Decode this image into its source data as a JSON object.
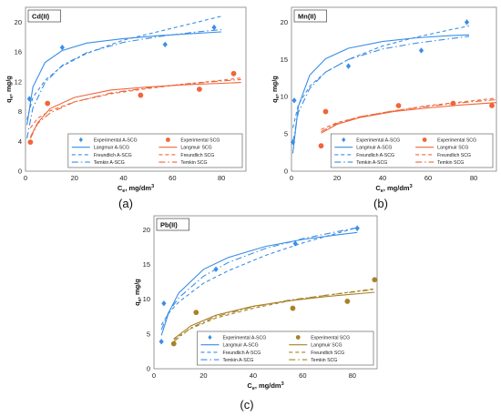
{
  "chart_data": [
    {
      "type": "scatter",
      "panel_label": "(a)",
      "metal_label": "Cd(II)",
      "xlabel": "C",
      "xlabel_sub": "e",
      "xlabel_unit": ", mg/dm",
      "xlabel_sup": "3",
      "ylabel": "q",
      "ylabel_sub": "e",
      "ylabel_unit": ", mg/g",
      "xlim": [
        0,
        90
      ],
      "ylim": [
        0,
        22
      ],
      "xticks": [
        0,
        20,
        40,
        60,
        80
      ],
      "yticks": [
        0,
        4,
        8,
        12,
        16,
        20
      ],
      "legend_position": "bottom-right",
      "series": [
        {
          "name": "Experimental A-SCG",
          "kind": "points",
          "marker": "diamond",
          "color": "#3a8ee6",
          "x": [
            1.6,
            15,
            57,
            77
          ],
          "y": [
            9.7,
            16.6,
            17,
            19.3
          ]
        },
        {
          "name": "Experimental SCG",
          "kind": "points",
          "marker": "circle",
          "color": "#f0653a",
          "x": [
            2,
            9,
            47,
            71,
            85
          ],
          "y": [
            3.9,
            9.1,
            10.2,
            11,
            13.1
          ]
        },
        {
          "name": "Langmuir A-SCG",
          "kind": "line",
          "dash": "solid",
          "color": "#3a8ee6",
          "x": [
            0.6,
            3,
            8,
            15,
            25,
            40,
            55,
            70,
            80
          ],
          "y": [
            6.2,
            11.3,
            14.6,
            16.2,
            17.2,
            17.8,
            18.2,
            18.5,
            18.7
          ]
        },
        {
          "name": "Freundlich A-SCG",
          "kind": "line",
          "dash": "dash",
          "color": "#3a8ee6",
          "x": [
            0.6,
            3,
            8,
            15,
            25,
            40,
            55,
            70,
            80
          ],
          "y": [
            6.9,
            9.9,
            12.2,
            14.1,
            15.8,
            17.6,
            18.8,
            20,
            20.8
          ]
        },
        {
          "name": "Temkin A-SCG",
          "kind": "line",
          "dash": "dashdot",
          "color": "#3a8ee6",
          "x": [
            0.6,
            3,
            8,
            15,
            25,
            40,
            55,
            70,
            80
          ],
          "y": [
            4.4,
            8.5,
            11.9,
            14.2,
            15.9,
            17.3,
            18.1,
            18.7,
            19
          ]
        },
        {
          "name": "Langmuir SCG",
          "kind": "line",
          "dash": "solid",
          "color": "#f0653a",
          "x": [
            2,
            5,
            10,
            20,
            35,
            50,
            65,
            80,
            88
          ],
          "y": [
            4.6,
            6.5,
            8.4,
            9.9,
            10.9,
            11.3,
            11.6,
            11.8,
            11.9
          ]
        },
        {
          "name": "Freundlich SCG",
          "kind": "line",
          "dash": "dash",
          "color": "#f0653a",
          "x": [
            2,
            5,
            10,
            20,
            35,
            50,
            65,
            80,
            88
          ],
          "y": [
            5.8,
            7.1,
            8.1,
            9.3,
            10.4,
            11.1,
            11.7,
            12.2,
            12.5
          ]
        },
        {
          "name": "Temkin SCG",
          "kind": "line",
          "dash": "dashdot",
          "color": "#f0653a",
          "x": [
            2,
            5,
            10,
            20,
            35,
            50,
            65,
            80,
            88
          ],
          "y": [
            4.4,
            6.4,
            7.8,
            9.3,
            10.5,
            11.2,
            11.7,
            12.1,
            12.3
          ]
        }
      ]
    },
    {
      "type": "scatter",
      "panel_label": "(b)",
      "metal_label": "Mn(II)",
      "xlabel": "C",
      "xlabel_sub": "e",
      "xlabel_unit": ", mg/dm",
      "xlabel_sup": "3",
      "ylabel": "q",
      "ylabel_sub": "e",
      "ylabel_unit": ", mg/g",
      "xlim": [
        0,
        90
      ],
      "ylim": [
        0,
        22
      ],
      "xticks": [
        0,
        20,
        40,
        60,
        80
      ],
      "yticks": [
        0,
        5,
        10,
        15,
        20
      ],
      "legend_position": "bottom-right",
      "series": [
        {
          "name": "Experimental A-SCG",
          "kind": "points",
          "marker": "diamond",
          "color": "#3a8ee6",
          "x": [
            0.6,
            1.2,
            25,
            57,
            77
          ],
          "y": [
            3.9,
            9.5,
            14.1,
            16.2,
            20
          ]
        },
        {
          "name": "Experimental SCG",
          "kind": "points",
          "marker": "circle",
          "color": "#f0653a",
          "x": [
            13,
            15,
            47,
            71,
            88
          ],
          "y": [
            3.4,
            8,
            8.8,
            9.1,
            8.8
          ]
        },
        {
          "name": "Langmuir A-SCG",
          "kind": "line",
          "dash": "solid",
          "color": "#3a8ee6",
          "x": [
            0.6,
            3,
            8,
            15,
            25,
            40,
            55,
            70,
            78
          ],
          "y": [
            2.4,
            8.7,
            12.9,
            15.1,
            16.5,
            17.4,
            17.9,
            18.2,
            18.3
          ]
        },
        {
          "name": "Freundlich A-SCG",
          "kind": "line",
          "dash": "dash",
          "color": "#3a8ee6",
          "x": [
            0.6,
            3,
            8,
            15,
            25,
            40,
            55,
            70,
            78
          ],
          "y": [
            5.8,
            8.9,
            11.4,
            13.3,
            15,
            16.8,
            18,
            19,
            19.5
          ]
        },
        {
          "name": "Temkin A-SCG",
          "kind": "line",
          "dash": "dashdot",
          "color": "#3a8ee6",
          "x": [
            0.6,
            3,
            8,
            15,
            25,
            40,
            55,
            70,
            78
          ],
          "y": [
            3.9,
            7.9,
            11.1,
            13.3,
            15,
            16.4,
            17.2,
            17.8,
            18.1
          ]
        },
        {
          "name": "Langmuir SCG",
          "kind": "line",
          "dash": "solid",
          "color": "#f0653a",
          "x": [
            13,
            20,
            30,
            45,
            60,
            75,
            90
          ],
          "y": [
            5.1,
            6.3,
            7.2,
            8,
            8.5,
            8.9,
            9.2
          ]
        },
        {
          "name": "Freundlich SCG",
          "kind": "line",
          "dash": "dash",
          "color": "#f0653a",
          "x": [
            13,
            20,
            30,
            45,
            60,
            75,
            90
          ],
          "y": [
            5.6,
            6.5,
            7.3,
            8.1,
            8.8,
            9.3,
            9.8
          ]
        },
        {
          "name": "Temkin SCG",
          "kind": "line",
          "dash": "dashdot",
          "color": "#f0653a",
          "x": [
            13,
            20,
            30,
            45,
            60,
            75,
            90
          ],
          "y": [
            5.3,
            6.4,
            7.3,
            8.1,
            8.7,
            9.2,
            9.6
          ]
        }
      ]
    },
    {
      "type": "scatter",
      "panel_label": "(c)",
      "metal_label": "Pb(II)",
      "xlabel": "C",
      "xlabel_sub": "e",
      "xlabel_unit": ", mg/dm",
      "xlabel_sup": "3",
      "ylabel": "q",
      "ylabel_sub": "e",
      "ylabel_unit": ", mg/g",
      "xlim": [
        0,
        90
      ],
      "ylim": [
        0,
        22
      ],
      "xticks": [
        0,
        20,
        40,
        60,
        80
      ],
      "yticks": [
        0,
        5,
        10,
        15,
        20
      ],
      "legend_position": "bottom-right",
      "series": [
        {
          "name": "Experimental A-SCG",
          "kind": "points",
          "marker": "diamond",
          "color": "#3a8ee6",
          "x": [
            3,
            4,
            25,
            57,
            82
          ],
          "y": [
            3.9,
            9.4,
            14.3,
            18,
            20.2
          ]
        },
        {
          "name": "Experimental SCG",
          "kind": "points",
          "marker": "circle",
          "color": "#a8822a",
          "x": [
            8,
            17,
            56,
            78,
            89
          ],
          "y": [
            3.6,
            8.1,
            8.7,
            9.7,
            12.8
          ]
        },
        {
          "name": "Langmuir A-SCG",
          "kind": "line",
          "dash": "solid",
          "color": "#3a8ee6",
          "x": [
            3,
            6,
            10,
            20,
            30,
            45,
            60,
            75,
            82
          ],
          "y": [
            4.8,
            8.1,
            10.9,
            14.3,
            16,
            17.6,
            18.6,
            19.3,
            19.6
          ]
        },
        {
          "name": "Freundlich A-SCG",
          "kind": "line",
          "dash": "dash",
          "color": "#3a8ee6",
          "x": [
            3,
            6,
            10,
            20,
            30,
            45,
            60,
            75,
            82
          ],
          "y": [
            6.3,
            8,
            9.6,
            12.3,
            14.1,
            16.3,
            18.1,
            19.6,
            20.3
          ]
        },
        {
          "name": "Temkin A-SCG",
          "kind": "line",
          "dash": "dashdot",
          "color": "#3a8ee6",
          "x": [
            3,
            6,
            10,
            20,
            30,
            45,
            60,
            75,
            82
          ],
          "y": [
            5.6,
            8.2,
            10.2,
            13.3,
            15.3,
            17.3,
            18.7,
            19.8,
            20.3
          ]
        },
        {
          "name": "Langmuir SCG",
          "kind": "line",
          "dash": "solid",
          "color": "#a8822a",
          "x": [
            8,
            15,
            25,
            40,
            55,
            70,
            89
          ],
          "y": [
            4.3,
            6.2,
            7.7,
            9,
            9.8,
            10.4,
            11
          ]
        },
        {
          "name": "Freundlich SCG",
          "kind": "line",
          "dash": "dash",
          "color": "#a8822a",
          "x": [
            8,
            15,
            25,
            40,
            55,
            70,
            89
          ],
          "y": [
            4.2,
            5.8,
            7.3,
            8.7,
            9.8,
            10.6,
            11.5
          ]
        },
        {
          "name": "Temkin SCG",
          "kind": "line",
          "dash": "dashdot",
          "color": "#a8822a",
          "x": [
            8,
            15,
            25,
            40,
            55,
            70,
            89
          ],
          "y": [
            3.9,
            5.9,
            7.5,
            8.9,
            9.9,
            10.6,
            11.4
          ]
        }
      ]
    }
  ]
}
